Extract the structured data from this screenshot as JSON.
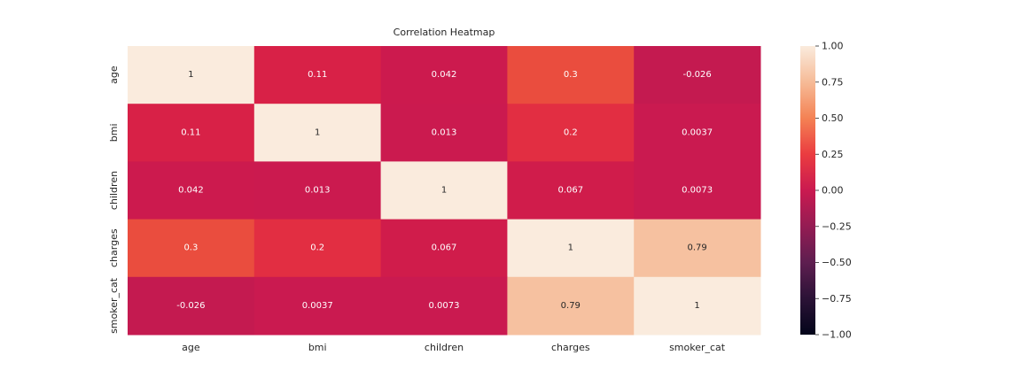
{
  "chart_data": {
    "type": "heatmap",
    "title": "Correlation Heatmap",
    "xlabel": "",
    "ylabel": "",
    "x_categories": [
      "age",
      "bmi",
      "children",
      "charges",
      "smoker_cat"
    ],
    "y_categories": [
      "age",
      "bmi",
      "children",
      "charges",
      "smoker_cat"
    ],
    "values": [
      [
        1,
        0.11,
        0.042,
        0.3,
        -0.026
      ],
      [
        0.11,
        1,
        0.013,
        0.2,
        0.0037
      ],
      [
        0.042,
        0.013,
        1,
        0.067,
        0.0073
      ],
      [
        0.3,
        0.2,
        0.067,
        1,
        0.79
      ],
      [
        -0.026,
        0.0037,
        0.0073,
        0.79,
        1
      ]
    ],
    "annotations": [
      [
        "1",
        "0.11",
        "0.042",
        "0.3",
        "-0.026"
      ],
      [
        "0.11",
        "1",
        "0.013",
        "0.2",
        "0.0037"
      ],
      [
        "0.042",
        "0.013",
        "1",
        "0.067",
        "0.0073"
      ],
      [
        "0.3",
        "0.2",
        "0.067",
        "1",
        "0.79"
      ],
      [
        "-0.026",
        "0.0037",
        "0.0073",
        "0.79",
        "1"
      ]
    ],
    "vmin": -1,
    "vmax": 1,
    "colormap": "rocket",
    "colorbar": {
      "ticks": [
        1.0,
        0.75,
        0.5,
        0.25,
        0.0,
        -0.25,
        -0.5,
        -0.75,
        -1.0
      ],
      "tick_labels": [
        "1.00",
        "0.75",
        "0.50",
        "0.25",
        "0.00",
        "−0.25",
        "−0.50",
        "−0.75",
        "−1.00"
      ]
    },
    "grid": false,
    "legend": "colorbar-right"
  }
}
